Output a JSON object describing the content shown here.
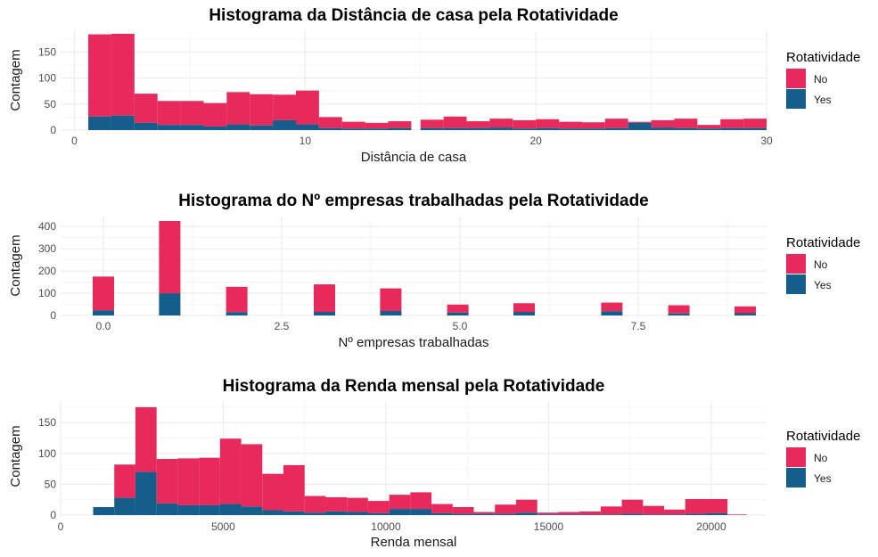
{
  "colors": {
    "no": "#E8295B",
    "yes": "#155E8B",
    "grid_major": "#EBEBEB",
    "grid_minor": "#F4F4F4"
  },
  "chart_data": [
    {
      "type": "bar",
      "title": "Histograma da Distância de casa pela Rotatividade",
      "xlabel": "Distância de casa",
      "ylabel": "Contagem",
      "xlim": [
        -0.6,
        30
      ],
      "ylim": [
        0,
        190
      ],
      "x_ticks": [
        0,
        10,
        20,
        30
      ],
      "x_tick_labels": [
        "0",
        "10",
        "20",
        "30"
      ],
      "y_ticks": [
        0,
        50,
        100,
        150
      ],
      "y_tick_labels": [
        "0",
        "50",
        "100",
        "150"
      ],
      "grid": true,
      "legend": {
        "title": "Rotatividade",
        "entries": [
          "No",
          "Yes"
        ],
        "position": "right"
      },
      "bins": [
        {
          "x0": 0.6,
          "x1": 1.6,
          "no": 158,
          "yes": 26
        },
        {
          "x0": 1.6,
          "x1": 2.6,
          "no": 157,
          "yes": 28
        },
        {
          "x0": 2.6,
          "x1": 3.6,
          "no": 56,
          "yes": 14
        },
        {
          "x0": 3.6,
          "x1": 4.6,
          "no": 46,
          "yes": 10
        },
        {
          "x0": 4.6,
          "x1": 5.6,
          "no": 46,
          "yes": 10
        },
        {
          "x0": 5.6,
          "x1": 6.6,
          "no": 45,
          "yes": 7
        },
        {
          "x0": 6.6,
          "x1": 7.6,
          "no": 62,
          "yes": 11
        },
        {
          "x0": 7.6,
          "x1": 8.6,
          "no": 60,
          "yes": 9
        },
        {
          "x0": 8.6,
          "x1": 9.6,
          "no": 49,
          "yes": 19
        },
        {
          "x0": 9.6,
          "x1": 10.6,
          "no": 65,
          "yes": 11
        },
        {
          "x0": 10.6,
          "x1": 11.6,
          "no": 21,
          "yes": 4
        },
        {
          "x0": 11.6,
          "x1": 12.6,
          "no": 13,
          "yes": 3
        },
        {
          "x0": 12.6,
          "x1": 13.6,
          "no": 11,
          "yes": 3
        },
        {
          "x0": 13.6,
          "x1": 14.6,
          "no": 13,
          "yes": 4
        },
        {
          "x0": 15.0,
          "x1": 16.0,
          "no": 16,
          "yes": 4
        },
        {
          "x0": 16.0,
          "x1": 17.0,
          "no": 22,
          "yes": 4
        },
        {
          "x0": 17.0,
          "x1": 18.0,
          "no": 13,
          "yes": 4
        },
        {
          "x0": 18.0,
          "x1": 19.0,
          "no": 17,
          "yes": 5
        },
        {
          "x0": 19.0,
          "x1": 20.0,
          "no": 16,
          "yes": 3
        },
        {
          "x0": 20.0,
          "x1": 21.0,
          "no": 17,
          "yes": 4
        },
        {
          "x0": 21.0,
          "x1": 22.0,
          "no": 13,
          "yes": 3
        },
        {
          "x0": 22.0,
          "x1": 23.0,
          "no": 12,
          "yes": 3
        },
        {
          "x0": 23.0,
          "x1": 24.0,
          "no": 18,
          "yes": 4
        },
        {
          "x0": 24.0,
          "x1": 25.0,
          "no": 2,
          "yes": 14
        },
        {
          "x0": 25.0,
          "x1": 26.0,
          "no": 14,
          "yes": 5
        },
        {
          "x0": 26.0,
          "x1": 27.0,
          "no": 18,
          "yes": 4
        },
        {
          "x0": 27.0,
          "x1": 28.0,
          "no": 7,
          "yes": 3
        },
        {
          "x0": 28.0,
          "x1": 29.0,
          "no": 17,
          "yes": 4
        },
        {
          "x0": 29.0,
          "x1": 30.0,
          "no": 18,
          "yes": 4
        }
      ]
    },
    {
      "type": "bar",
      "title": "Histograma do Nº empresas trabalhadas pela Rotatividade",
      "xlabel": "Nº empresas trabalhadas",
      "ylabel": "Contagem",
      "xlim": [
        -0.6,
        9.3
      ],
      "ylim": [
        0,
        445
      ],
      "x_ticks": [
        0,
        2.5,
        5,
        7.5
      ],
      "x_tick_labels": [
        "0.0",
        "2.5",
        "5.0",
        "7.5"
      ],
      "y_ticks": [
        0,
        100,
        200,
        300,
        400
      ],
      "y_tick_labels": [
        "0",
        "100",
        "200",
        "300",
        "400"
      ],
      "grid": true,
      "legend": {
        "title": "Rotatividade",
        "entries": [
          "No",
          "Yes"
        ],
        "position": "right"
      },
      "bins": [
        {
          "x0": -0.15,
          "x1": 0.15,
          "no": 152,
          "yes": 23
        },
        {
          "x0": 0.78,
          "x1": 1.08,
          "no": 325,
          "yes": 100
        },
        {
          "x0": 1.72,
          "x1": 2.02,
          "no": 114,
          "yes": 15
        },
        {
          "x0": 2.95,
          "x1": 3.25,
          "no": 124,
          "yes": 16
        },
        {
          "x0": 3.88,
          "x1": 4.18,
          "no": 102,
          "yes": 20
        },
        {
          "x0": 4.82,
          "x1": 5.12,
          "no": 36,
          "yes": 13
        },
        {
          "x0": 5.75,
          "x1": 6.05,
          "no": 39,
          "yes": 16
        },
        {
          "x0": 6.98,
          "x1": 7.28,
          "no": 39,
          "yes": 19
        },
        {
          "x0": 7.92,
          "x1": 8.22,
          "no": 37,
          "yes": 9
        },
        {
          "x0": 8.85,
          "x1": 9.15,
          "no": 31,
          "yes": 10
        }
      ]
    },
    {
      "type": "bar",
      "title": "Histograma da Renda mensal pela Rotatividade",
      "xlabel": "Renda mensal",
      "ylabel": "Contagem",
      "xlim": [
        0,
        21700
      ],
      "ylim": [
        0,
        185
      ],
      "x_ticks": [
        0,
        5000,
        10000,
        15000,
        20000
      ],
      "x_tick_labels": [
        "0",
        "5000",
        "10000",
        "15000",
        "20000"
      ],
      "y_ticks": [
        0,
        50,
        100,
        150
      ],
      "y_tick_labels": [
        "0",
        "50",
        "100",
        "150"
      ],
      "grid": true,
      "legend": {
        "title": "Rotatividade",
        "entries": [
          "No",
          "Yes"
        ],
        "position": "right"
      },
      "bins": [
        {
          "x0": 1000,
          "x1": 1650,
          "no": 0,
          "yes": 13
        },
        {
          "x0": 1650,
          "x1": 2300,
          "no": 54,
          "yes": 28
        },
        {
          "x0": 2300,
          "x1": 2950,
          "no": 105,
          "yes": 70
        },
        {
          "x0": 2950,
          "x1": 3600,
          "no": 72,
          "yes": 19
        },
        {
          "x0": 3600,
          "x1": 4250,
          "no": 76,
          "yes": 16
        },
        {
          "x0": 4250,
          "x1": 4900,
          "no": 77,
          "yes": 16
        },
        {
          "x0": 4900,
          "x1": 5550,
          "no": 106,
          "yes": 18
        },
        {
          "x0": 5550,
          "x1": 6200,
          "no": 101,
          "yes": 14
        },
        {
          "x0": 6200,
          "x1": 6850,
          "no": 59,
          "yes": 8
        },
        {
          "x0": 6850,
          "x1": 7500,
          "no": 75,
          "yes": 6
        },
        {
          "x0": 7500,
          "x1": 8150,
          "no": 27,
          "yes": 4
        },
        {
          "x0": 8150,
          "x1": 8800,
          "no": 23,
          "yes": 6
        },
        {
          "x0": 8800,
          "x1": 9450,
          "no": 23,
          "yes": 5
        },
        {
          "x0": 9450,
          "x1": 10100,
          "no": 20,
          "yes": 3
        },
        {
          "x0": 10100,
          "x1": 10750,
          "no": 23,
          "yes": 10
        },
        {
          "x0": 10750,
          "x1": 11400,
          "no": 27,
          "yes": 10
        },
        {
          "x0": 11400,
          "x1": 12050,
          "no": 15,
          "yes": 3
        },
        {
          "x0": 12050,
          "x1": 12700,
          "no": 11,
          "yes": 2
        },
        {
          "x0": 12700,
          "x1": 13350,
          "no": 3,
          "yes": 2
        },
        {
          "x0": 13350,
          "x1": 14000,
          "no": 15,
          "yes": 2
        },
        {
          "x0": 14000,
          "x1": 14650,
          "no": 21,
          "yes": 4
        },
        {
          "x0": 14650,
          "x1": 15300,
          "no": 3,
          "yes": 1
        },
        {
          "x0": 15300,
          "x1": 15950,
          "no": 4,
          "yes": 1
        },
        {
          "x0": 15950,
          "x1": 16600,
          "no": 5,
          "yes": 1
        },
        {
          "x0": 16600,
          "x1": 17250,
          "no": 13,
          "yes": 1
        },
        {
          "x0": 17250,
          "x1": 17900,
          "no": 23,
          "yes": 2
        },
        {
          "x0": 17900,
          "x1": 18550,
          "no": 14,
          "yes": 1
        },
        {
          "x0": 18550,
          "x1": 19200,
          "no": 8,
          "yes": 1
        },
        {
          "x0": 19200,
          "x1": 19850,
          "no": 24,
          "yes": 2
        },
        {
          "x0": 19850,
          "x1": 20500,
          "no": 23,
          "yes": 3
        },
        {
          "x0": 20500,
          "x1": 21100,
          "no": 1,
          "yes": 0
        }
      ]
    }
  ]
}
